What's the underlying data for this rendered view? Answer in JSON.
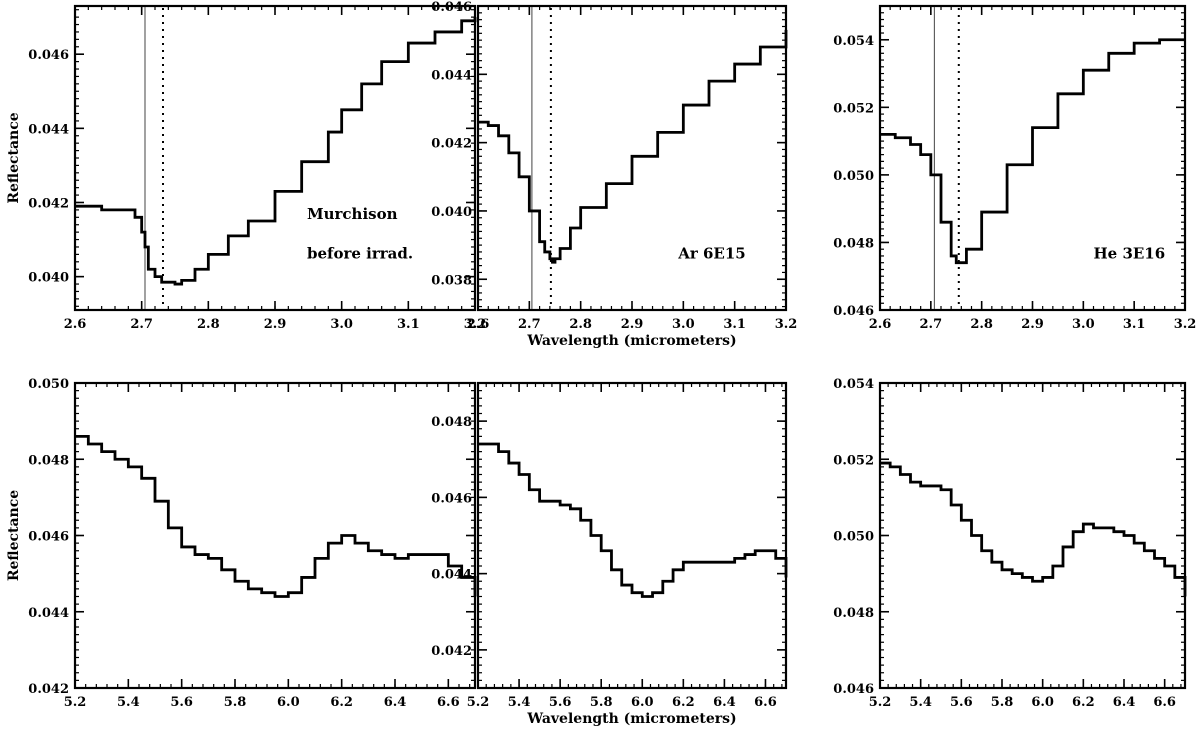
{
  "chart_data": [
    {
      "type": "line",
      "xlim": [
        2.6,
        3.2
      ],
      "ylim": [
        0.0391,
        0.0473
      ],
      "xticks": [
        "2.6",
        "2.7",
        "2.8",
        "2.9",
        "3.0",
        "3.1",
        "3.2"
      ],
      "yticks": [
        "0.040",
        "0.042",
        "0.044",
        "0.046"
      ],
      "xlabel": "",
      "ylabel": "Reflectance",
      "annotations": [
        "Murchison",
        "before irrad."
      ],
      "vlines": {
        "solid": 2.705,
        "dotted": 2.732
      },
      "series": [
        {
          "x": [
            2.6,
            2.64,
            2.68,
            2.69,
            2.7,
            2.705,
            2.71,
            2.72,
            2.73,
            2.74,
            2.75,
            2.76,
            2.78,
            2.8,
            2.83,
            2.86,
            2.9,
            2.94,
            2.98,
            3.0,
            3.03,
            3.06,
            3.1,
            3.14,
            3.18,
            3.2
          ],
          "values": [
            0.0419,
            0.0418,
            0.0418,
            0.0416,
            0.0412,
            0.0408,
            0.0402,
            0.04,
            0.03985,
            0.03985,
            0.0398,
            0.0399,
            0.0402,
            0.0406,
            0.0411,
            0.0415,
            0.0423,
            0.0431,
            0.0439,
            0.0445,
            0.0452,
            0.0458,
            0.0463,
            0.0466,
            0.0469,
            0.047
          ]
        }
      ]
    },
    {
      "type": "line",
      "xlim": [
        2.6,
        3.2
      ],
      "ylim": [
        0.0371,
        0.046
      ],
      "xticks": [
        "2.6",
        "2.7",
        "2.8",
        "2.9",
        "3.0",
        "3.1",
        "3.2"
      ],
      "yticks": [
        "0.038",
        "0.040",
        "0.042",
        "0.044",
        "0.046"
      ],
      "xlabel": "Wavelength (micrometers)",
      "ylabel": "",
      "annotations": [
        "Ar 6E15"
      ],
      "vlines": {
        "solid": 2.705,
        "dotted": 2.742
      },
      "series": [
        {
          "x": [
            2.6,
            2.62,
            2.64,
            2.66,
            2.68,
            2.7,
            2.72,
            2.73,
            2.74,
            2.745,
            2.75,
            2.76,
            2.78,
            2.8,
            2.85,
            2.9,
            2.95,
            3.0,
            3.05,
            3.1,
            3.15,
            3.2
          ],
          "values": [
            0.0426,
            0.0425,
            0.0422,
            0.0417,
            0.041,
            0.04,
            0.0391,
            0.0388,
            0.0386,
            0.0385,
            0.0386,
            0.0389,
            0.0395,
            0.0401,
            0.0408,
            0.0416,
            0.0423,
            0.0431,
            0.0438,
            0.0443,
            0.0448,
            0.0453
          ]
        }
      ]
    },
    {
      "type": "line",
      "xlim": [
        2.6,
        3.2
      ],
      "ylim": [
        0.046,
        0.055
      ],
      "xticks": [
        "2.6",
        "2.7",
        "2.8",
        "2.9",
        "3.0",
        "3.1",
        "3.2"
      ],
      "yticks": [
        "0.046",
        "0.048",
        "0.050",
        "0.052",
        "0.054"
      ],
      "xlabel": "",
      "ylabel": "",
      "annotations": [
        "He 3E16"
      ],
      "vlines": {
        "solid": 2.707,
        "dotted": 2.755
      },
      "series": [
        {
          "x": [
            2.6,
            2.63,
            2.66,
            2.68,
            2.7,
            2.72,
            2.74,
            2.75,
            2.76,
            2.77,
            2.8,
            2.85,
            2.9,
            2.95,
            3.0,
            3.05,
            3.1,
            3.15,
            3.2
          ],
          "values": [
            0.0512,
            0.0511,
            0.0509,
            0.0506,
            0.05,
            0.0486,
            0.0476,
            0.0474,
            0.0474,
            0.0478,
            0.0489,
            0.0503,
            0.0514,
            0.0524,
            0.0531,
            0.0536,
            0.0539,
            0.054,
            0.054
          ]
        }
      ]
    },
    {
      "type": "line",
      "xlim": [
        5.2,
        6.7
      ],
      "ylim": [
        0.042,
        0.05
      ],
      "xticks": [
        "5.2",
        "5.4",
        "5.6",
        "5.8",
        "6.0",
        "6.2",
        "6.4",
        "6.6"
      ],
      "yticks": [
        "0.042",
        "0.044",
        "0.046",
        "0.048",
        "0.050"
      ],
      "xlabel": "",
      "ylabel": "Reflectance",
      "annotations": [],
      "series": [
        {
          "x": [
            5.2,
            5.25,
            5.3,
            5.35,
            5.4,
            5.45,
            5.5,
            5.55,
            5.6,
            5.65,
            5.7,
            5.75,
            5.8,
            5.85,
            5.9,
            5.95,
            6.0,
            6.05,
            6.1,
            6.15,
            6.2,
            6.25,
            6.3,
            6.35,
            6.4,
            6.45,
            6.5,
            6.55,
            6.6,
            6.65,
            6.7
          ],
          "values": [
            0.0486,
            0.0484,
            0.0482,
            0.048,
            0.0478,
            0.0475,
            0.0469,
            0.0462,
            0.0457,
            0.0455,
            0.0454,
            0.0451,
            0.0448,
            0.0446,
            0.0445,
            0.0444,
            0.0445,
            0.0449,
            0.0454,
            0.0458,
            0.046,
            0.0458,
            0.0456,
            0.0455,
            0.0454,
            0.0455,
            0.0455,
            0.0455,
            0.0452,
            0.0449,
            0.0444
          ]
        }
      ]
    },
    {
      "type": "line",
      "xlim": [
        5.2,
        6.7
      ],
      "ylim": [
        0.041,
        0.049
      ],
      "xticks": [
        "5.2",
        "5.4",
        "5.6",
        "5.8",
        "6.0",
        "6.2",
        "6.4",
        "6.6"
      ],
      "yticks": [
        "0.042",
        "0.044",
        "0.046",
        "0.048"
      ],
      "xlabel": "Wavelength (micrometers)",
      "ylabel": "",
      "annotations": [],
      "series": [
        {
          "x": [
            5.2,
            5.25,
            5.3,
            5.35,
            5.4,
            5.45,
            5.5,
            5.55,
            5.6,
            5.65,
            5.7,
            5.75,
            5.8,
            5.85,
            5.9,
            5.95,
            6.0,
            6.05,
            6.1,
            6.15,
            6.2,
            6.25,
            6.3,
            6.35,
            6.4,
            6.45,
            6.5,
            6.55,
            6.6,
            6.65,
            6.7
          ],
          "values": [
            0.0474,
            0.0474,
            0.0472,
            0.0469,
            0.0466,
            0.0462,
            0.0459,
            0.0459,
            0.0458,
            0.0457,
            0.0454,
            0.045,
            0.0446,
            0.0441,
            0.0437,
            0.0435,
            0.0434,
            0.0435,
            0.0438,
            0.0441,
            0.0443,
            0.0443,
            0.0443,
            0.0443,
            0.0443,
            0.0444,
            0.0445,
            0.0446,
            0.0446,
            0.0444,
            0.0439
          ]
        }
      ]
    },
    {
      "type": "line",
      "xlim": [
        5.2,
        6.7
      ],
      "ylim": [
        0.046,
        0.054
      ],
      "xticks": [
        "5.2",
        "5.4",
        "5.6",
        "5.8",
        "6.0",
        "6.2",
        "6.4",
        "6.6"
      ],
      "yticks": [
        "0.046",
        "0.048",
        "0.050",
        "0.052",
        "0.054"
      ],
      "xlabel": "",
      "ylabel": "",
      "annotations": [],
      "series": [
        {
          "x": [
            5.2,
            5.25,
            5.3,
            5.35,
            5.4,
            5.45,
            5.5,
            5.55,
            5.6,
            5.65,
            5.7,
            5.75,
            5.8,
            5.85,
            5.9,
            5.95,
            6.0,
            6.05,
            6.1,
            6.15,
            6.2,
            6.25,
            6.3,
            6.35,
            6.4,
            6.45,
            6.5,
            6.55,
            6.6,
            6.65,
            6.7
          ],
          "values": [
            0.0519,
            0.0518,
            0.0516,
            0.0514,
            0.0513,
            0.0513,
            0.0512,
            0.0508,
            0.0504,
            0.05,
            0.0496,
            0.0493,
            0.0491,
            0.049,
            0.0489,
            0.0488,
            0.0489,
            0.0492,
            0.0497,
            0.0501,
            0.0503,
            0.0502,
            0.0502,
            0.0501,
            0.05,
            0.0498,
            0.0496,
            0.0494,
            0.0492,
            0.0489,
            0.0484
          ]
        }
      ]
    }
  ]
}
